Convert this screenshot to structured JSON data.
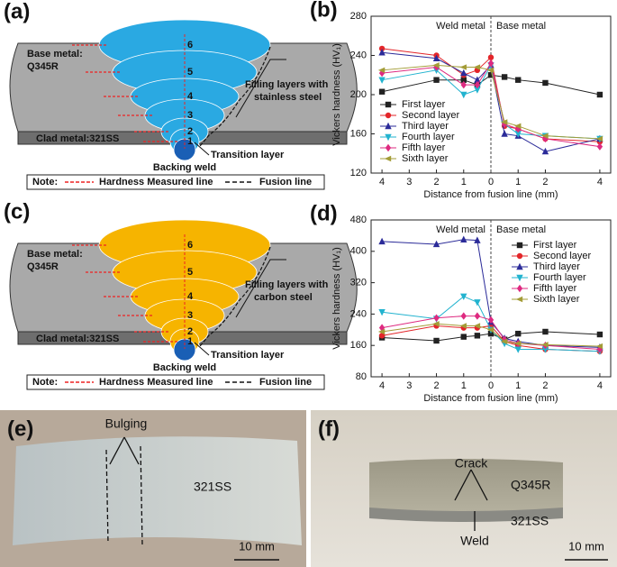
{
  "chart_data": [
    {
      "type": "line",
      "panel_label": "(b)",
      "ylabel": "Vickers hardness (HV₁)",
      "xlabel": "Distance from fusion line (mm)",
      "annotations": [
        "Weld metal",
        "Base metal"
      ],
      "vline": 0,
      "legend": "lower left",
      "xlim": [
        -4.4,
        4.4
      ],
      "xticks": [
        {
          "value": -4,
          "label": "4"
        },
        {
          "value": -3,
          "label": "3"
        },
        {
          "value": -2,
          "label": "2"
        },
        {
          "value": -1,
          "label": "1"
        },
        0,
        1,
        2,
        4
      ],
      "ylim": [
        120,
        280
      ],
      "yticks": [
        120,
        160,
        200,
        240,
        280
      ],
      "x": [
        -4,
        -2,
        -1,
        -0.5,
        0,
        0.5,
        1,
        2,
        4
      ],
      "series": [
        {
          "name": "First layer",
          "color": "#222222",
          "marker": "square",
          "values": [
            203,
            215,
            215,
            210,
            220,
            218,
            215,
            212,
            200
          ]
        },
        {
          "name": "Second layer",
          "color": "#e3262a",
          "marker": "circle",
          "values": [
            247,
            240,
            220,
            225,
            238,
            168,
            165,
            155,
            152
          ]
        },
        {
          "name": "Third layer",
          "color": "#2b2b99",
          "marker": "triangle",
          "values": [
            243,
            237,
            222,
            215,
            230,
            160,
            158,
            142,
            155
          ]
        },
        {
          "name": "Fourth layer",
          "color": "#22b3cf",
          "marker": "down",
          "values": [
            215,
            225,
            200,
            205,
            230,
            170,
            160,
            158,
            155
          ]
        },
        {
          "name": "Fifth layer",
          "color": "#de2a80",
          "marker": "diamond",
          "values": [
            222,
            228,
            210,
            210,
            232,
            170,
            165,
            155,
            147
          ]
        },
        {
          "name": "Sixth layer",
          "color": "#a39c37",
          "marker": "left",
          "values": [
            225,
            230,
            228,
            228,
            225,
            172,
            168,
            158,
            155
          ]
        }
      ]
    },
    {
      "type": "line",
      "panel_label": "(d)",
      "ylabel": "Vickers hardness (HV₁)",
      "xlabel": "Distance from fusion line (mm)",
      "annotations": [
        "Weld metal",
        "Base metal"
      ],
      "vline": 0,
      "legend": "upper right",
      "xlim": [
        -4.4,
        4.4
      ],
      "xticks": [
        {
          "value": -4,
          "label": "4"
        },
        {
          "value": -3,
          "label": "3"
        },
        {
          "value": -2,
          "label": "2"
        },
        {
          "value": -1,
          "label": "1"
        },
        0,
        1,
        2,
        4
      ],
      "ylim": [
        80,
        480
      ],
      "yticks": [
        80,
        160,
        240,
        320,
        400,
        480
      ],
      "x": [
        -4,
        -2,
        -1,
        -0.5,
        0,
        0.5,
        1,
        2,
        4
      ],
      "series": [
        {
          "name": "First layer",
          "color": "#222222",
          "marker": "square",
          "values": [
            180,
            172,
            182,
            185,
            190,
            175,
            190,
            195,
            188
          ]
        },
        {
          "name": "Second layer",
          "color": "#e3262a",
          "marker": "circle",
          "values": [
            185,
            210,
            205,
            205,
            210,
            170,
            160,
            150,
            145
          ]
        },
        {
          "name": "Third layer",
          "color": "#2b2b99",
          "marker": "triangle",
          "values": [
            425,
            418,
            430,
            428,
            220,
            178,
            170,
            160,
            155
          ]
        },
        {
          "name": "Fourth layer",
          "color": "#22b3cf",
          "marker": "down",
          "values": [
            245,
            228,
            285,
            270,
            200,
            165,
            150,
            150,
            145
          ]
        },
        {
          "name": "Fifth layer",
          "color": "#de2a80",
          "marker": "diamond",
          "values": [
            205,
            230,
            235,
            235,
            225,
            175,
            165,
            160,
            150
          ]
        },
        {
          "name": "Sixth layer",
          "color": "#a39c37",
          "marker": "left",
          "values": [
            195,
            215,
            210,
            210,
            200,
            170,
            165,
            162,
            158
          ]
        }
      ]
    }
  ],
  "diagrams": [
    {
      "panel_label": "(a)",
      "color": "#2aa9e2",
      "base_metal": "Base metal:",
      "base_grade": "Q345R",
      "filling": [
        "Filling layers with",
        "stainless steel"
      ],
      "clad": "Clad metal:321SS",
      "transition": "Transition layer",
      "backing": "Backing weld",
      "note": "Note:",
      "hardness_line": "Hardness  Measured line",
      "fusion_line": "Fusion line",
      "layers": [
        "1",
        "2",
        "3",
        "4",
        "5",
        "6"
      ]
    },
    {
      "panel_label": "(c)",
      "color": "#f6b400",
      "base_metal": "Base metal:",
      "base_grade": "Q345R",
      "filling": [
        "Filling layers with",
        "carbon steel"
      ],
      "clad": "Clad metal:321SS",
      "transition": "Transition layer",
      "backing": "Backing weld",
      "note": "Note:",
      "hardness_line": "Hardness  Measured line",
      "fusion_line": "Fusion line",
      "layers": [
        "1",
        "2",
        "3",
        "4",
        "5",
        "6"
      ]
    }
  ],
  "photos": [
    {
      "panel_label": "(e)",
      "bulging": "Bulging",
      "material": "321SS",
      "scale": "10 mm"
    },
    {
      "panel_label": "(f)",
      "crack": "Crack",
      "base": "Q345R",
      "clad": "321SS",
      "weld": "Weld",
      "scale": "10 mm"
    }
  ]
}
